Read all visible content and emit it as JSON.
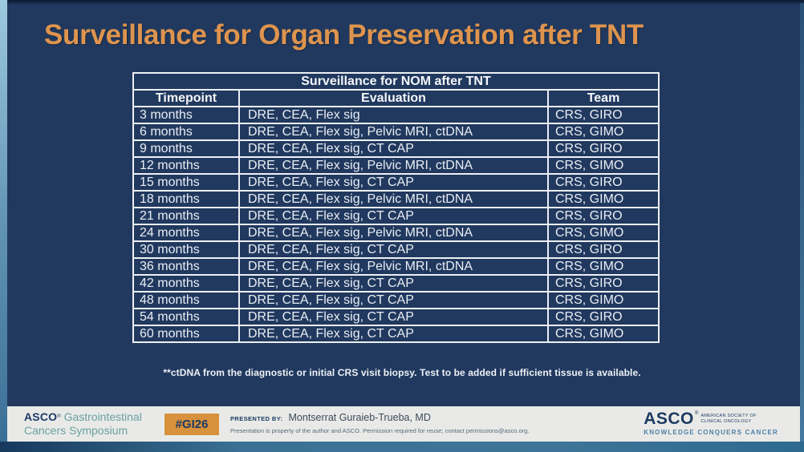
{
  "slide": {
    "title": "Surveillance for Organ Preservation after TNT",
    "footnote": "**ctDNA from the diagnostic or initial CRS visit biopsy. Test to be added if sufficient tissue is available."
  },
  "table": {
    "title": "Surveillance for NOM after TNT",
    "columns": [
      "Timepoint",
      "Evaluation",
      "Team"
    ],
    "rows": [
      [
        "3 months",
        "DRE, CEA, Flex sig",
        "CRS, GIRO"
      ],
      [
        "6 months",
        "DRE, CEA, Flex sig, Pelvic MRI, ctDNA",
        "CRS, GIMO"
      ],
      [
        "9 months",
        "DRE, CEA, Flex sig, CT CAP",
        "CRS, GIRO"
      ],
      [
        "12 months",
        "DRE, CEA, Flex sig, Pelvic MRI, ctDNA",
        "CRS, GIMO"
      ],
      [
        "15 months",
        "DRE, CEA, Flex sig, CT CAP",
        "CRS, GIRO"
      ],
      [
        "18 months",
        "DRE, CEA, Flex sig, Pelvic MRI, ctDNA",
        "CRS, GIMO"
      ],
      [
        "21 months",
        "DRE, CEA, Flex sig, CT CAP",
        "CRS, GIRO"
      ],
      [
        "24 months",
        "DRE, CEA, Flex sig, Pelvic MRI, ctDNA",
        "CRS, GIMO"
      ],
      [
        "30 months",
        "DRE, CEA, Flex sig, CT CAP",
        "CRS, GIRO"
      ],
      [
        "36 months",
        "DRE, CEA, Flex sig, Pelvic MRI, ctDNA",
        "CRS, GIMO"
      ],
      [
        "42 months",
        "DRE, CEA, Flex sig, CT CAP",
        "CRS, GIRO"
      ],
      [
        "48 months",
        "DRE, CEA, Flex sig, CT CAP",
        "CRS, GIMO"
      ],
      [
        "54 months",
        "DRE, CEA, Flex sig, CT CAP",
        "CRS, GIRO"
      ],
      [
        "60 months",
        "DRE, CEA, Flex sig, CT CAP",
        "CRS, GIMO"
      ]
    ]
  },
  "footer": {
    "symposium": {
      "asco": "ASCO",
      "mark": "®",
      "line1": "Gastrointestinal",
      "line2": "Cancers Symposium"
    },
    "hashtag": "#GI26",
    "presented_by_label": "PRESENTED BY:",
    "presenter": "Montserrat Guraieb-Trueba, MD",
    "disclaimer": "Presentation is property of the author and ASCO. Permission required for reuse; contact permissions@asco.org.",
    "asco_logo": {
      "asco": "ASCO",
      "mark": "®",
      "society_line1": "AMERICAN SOCIETY OF",
      "society_line2": "CLINICAL ONCOLOGY",
      "tagline": "KNOWLEDGE CONQUERS CANCER"
    }
  },
  "colors": {
    "slide_background": "#21395f",
    "title_orange": "#de944e",
    "table_border": "#edf0f4",
    "table_text": "#eaeef4",
    "footer_background": "#e9eae7",
    "badge_orange": "#d8913c",
    "navy_text": "#1d3a63",
    "teal_text": "#69a0a1",
    "tagline_blue": "#4d7fa6",
    "bottom_strip": "#3d7497"
  }
}
